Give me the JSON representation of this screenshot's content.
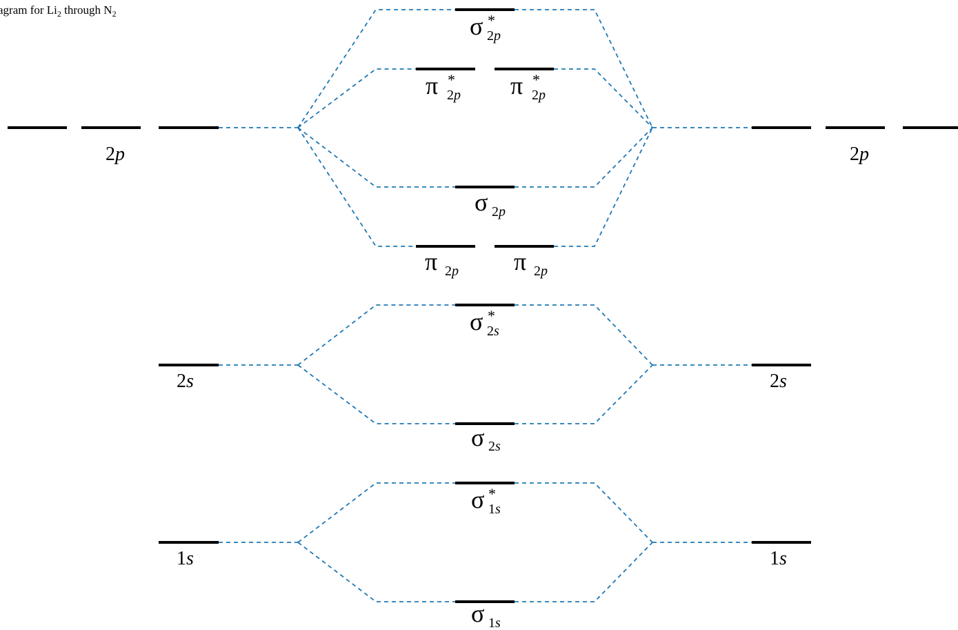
{
  "title": {
    "text_a": "agram for Li",
    "sub_a": "2",
    "text_b": " through N",
    "sub_b": "2"
  },
  "colors": {
    "connector": "#1f77b4",
    "level": "#000000"
  },
  "atomic_levels": {
    "left_2p": {
      "num": "2",
      "orb": "p"
    },
    "left_2s": {
      "num": "2",
      "orb": "s"
    },
    "left_1s": {
      "num": "1",
      "orb": "s"
    },
    "right_2p": {
      "num": "2",
      "orb": "p"
    },
    "right_2s": {
      "num": "2",
      "orb": "s"
    },
    "right_1s": {
      "num": "1",
      "orb": "s"
    }
  },
  "molecular_levels": {
    "sigma_star_2p": {
      "sym": "σ",
      "star": "*",
      "sub_num": "2",
      "sub_orb": "p"
    },
    "pi_star_2p_a": {
      "sym": "π",
      "star": "*",
      "sub_num": "2",
      "sub_orb": "p"
    },
    "pi_star_2p_b": {
      "sym": "π",
      "star": "*",
      "sub_num": "2",
      "sub_orb": "p"
    },
    "sigma_2p": {
      "sym": "σ",
      "sub_num": "2",
      "sub_orb": "p"
    },
    "pi_2p_a": {
      "sym": "π",
      "sub_num": "2",
      "sub_orb": "p"
    },
    "pi_2p_b": {
      "sym": "π",
      "sub_num": "2",
      "sub_orb": "p"
    },
    "sigma_star_2s": {
      "sym": "σ",
      "star": "*",
      "sub_num": "2",
      "sub_orb": "s"
    },
    "sigma_2s": {
      "sym": "σ",
      "sub_num": "2",
      "sub_orb": "s"
    },
    "sigma_star_1s": {
      "sym": "σ",
      "star": "*",
      "sub_num": "1",
      "sub_orb": "s"
    },
    "sigma_1s": {
      "sym": "σ",
      "sub_num": "1",
      "sub_orb": "s"
    }
  }
}
